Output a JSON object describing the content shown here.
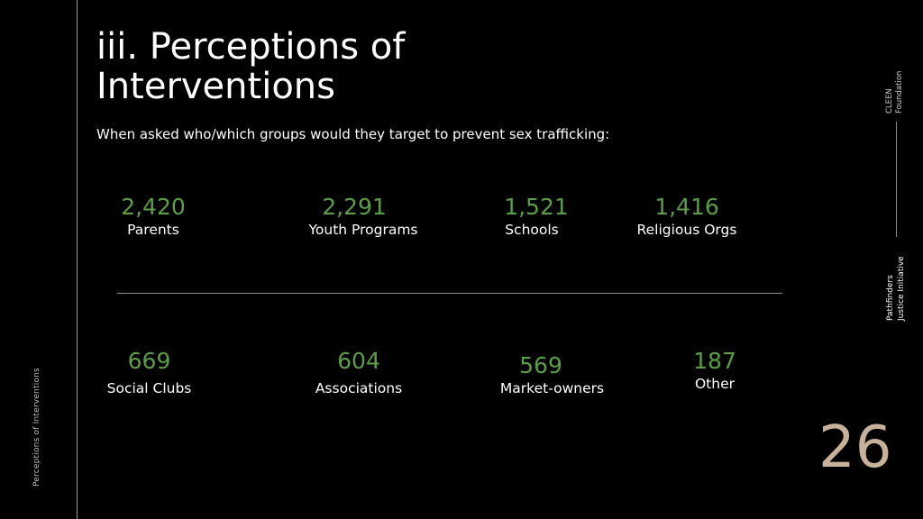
{
  "slide": {
    "title_line1": "iii. Perceptions of",
    "title_line2": "Interventions",
    "subtitle": "When asked who/which groups would they target to prevent sex trafficking:",
    "side_caption": "Perceptions of Interventions",
    "page_number": "26",
    "brand_top_line1": "CLEEN",
    "brand_top_line2": "Foundation",
    "brand_bottom_line1": "Pathfinders",
    "brand_bottom_line2": "Justice Initiative"
  },
  "stats": [
    {
      "value": "2,420",
      "label": "Parents"
    },
    {
      "value": "2,291",
      "label": "Youth Programs"
    },
    {
      "value": "1,521",
      "label": "Schools"
    },
    {
      "value": "1,416",
      "label": "Religious Orgs"
    },
    {
      "value": "669",
      "label": "Social Clubs"
    },
    {
      "value": "604",
      "label": "Associations"
    },
    {
      "value": "569",
      "label": "Market-owners"
    },
    {
      "value": "187",
      "label": "Other"
    }
  ],
  "colors": {
    "background": "#000000",
    "number_green": "#5a9e46",
    "page_number": "#c7b299"
  }
}
